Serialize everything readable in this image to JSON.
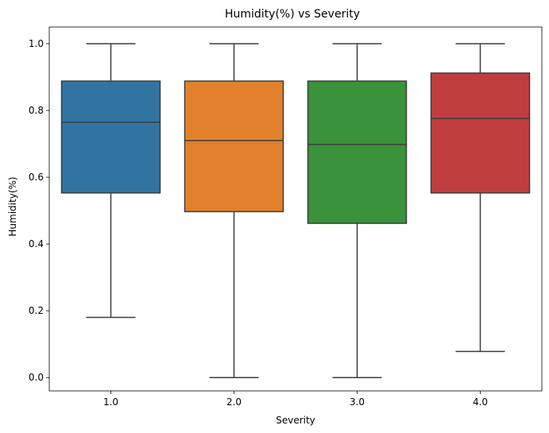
{
  "chart_data": {
    "type": "box",
    "title": "Humidity(%) vs Severity",
    "xlabel": "Severity",
    "ylabel": "Humidity(%)",
    "ylim": [
      -0.04,
      1.05
    ],
    "yticks": [
      "0.0",
      "0.2",
      "0.4",
      "0.6",
      "0.8",
      "1.0"
    ],
    "grid": false,
    "categories": [
      "1.0",
      "2.0",
      "3.0",
      "4.0"
    ],
    "boxes": [
      {
        "category": "1.0",
        "whisker_low": 0.18,
        "q1": 0.553,
        "median": 0.765,
        "q3": 0.888,
        "whisker_high": 1.0,
        "color": "#3274a1"
      },
      {
        "category": "2.0",
        "whisker_low": 0.0,
        "q1": 0.497,
        "median": 0.71,
        "q3": 0.888,
        "whisker_high": 1.0,
        "color": "#e1812c"
      },
      {
        "category": "3.0",
        "whisker_low": 0.0,
        "q1": 0.462,
        "median": 0.698,
        "q3": 0.888,
        "whisker_high": 1.0,
        "color": "#3a923a"
      },
      {
        "category": "4.0",
        "whisker_low": 0.078,
        "q1": 0.553,
        "median": 0.776,
        "q3": 0.912,
        "whisker_high": 1.0,
        "color": "#c03d3e"
      }
    ],
    "line_color": "#3d3d3d"
  }
}
